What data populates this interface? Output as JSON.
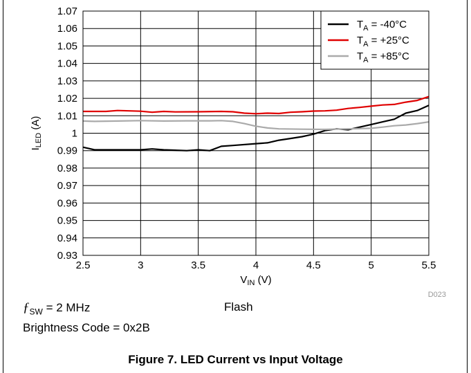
{
  "chart_data": {
    "type": "line",
    "xlabel": {
      "main": "V",
      "sub": "IN",
      "unit": " (V)"
    },
    "ylabel": {
      "main": "I",
      "sub": "LED",
      "unit": " (A)"
    },
    "xlim": [
      2.5,
      5.5
    ],
    "ylim": [
      0.93,
      1.07
    ],
    "x_ticks": [
      "2.5",
      "3",
      "3.5",
      "4",
      "4.5",
      "5",
      "5.5"
    ],
    "y_ticks": [
      "0.93",
      "0.94",
      "0.95",
      "0.96",
      "0.97",
      "0.98",
      "0.99",
      "1",
      "1.01",
      "1.02",
      "1.03",
      "1.04",
      "1.05",
      "1.06",
      "1.07"
    ],
    "grid": true,
    "legend_position": "top-right",
    "figure_id": "D023",
    "series": [
      {
        "legend_main": "T",
        "legend_sub": "A",
        "legend_rest": " = -40°C",
        "color": "#000000",
        "x": [
          2.5,
          2.6,
          2.8,
          3.0,
          3.1,
          3.2,
          3.4,
          3.5,
          3.6,
          3.7,
          3.8,
          4.0,
          4.1,
          4.2,
          4.3,
          4.4,
          4.5,
          4.6,
          4.7,
          4.8,
          4.9,
          5.0,
          5.1,
          5.2,
          5.3,
          5.4,
          5.5
        ],
        "y": [
          0.992,
          0.9905,
          0.9905,
          0.9905,
          0.991,
          0.9905,
          0.99,
          0.9905,
          0.99,
          0.9925,
          0.993,
          0.994,
          0.9945,
          0.996,
          0.997,
          0.998,
          0.9995,
          1.0015,
          1.0025,
          1.002,
          1.0035,
          1.005,
          1.0065,
          1.008,
          1.0115,
          1.013,
          1.016
        ]
      },
      {
        "legend_main": "T",
        "legend_sub": "A",
        "legend_rest": " = +25°C",
        "color": "#e00000",
        "x": [
          2.5,
          2.6,
          2.7,
          2.8,
          2.9,
          3.0,
          3.1,
          3.2,
          3.3,
          3.5,
          3.7,
          3.8,
          3.9,
          4.0,
          4.1,
          4.2,
          4.3,
          4.4,
          4.5,
          4.6,
          4.7,
          4.8,
          4.9,
          5.0,
          5.1,
          5.2,
          5.3,
          5.4,
          5.5
        ],
        "y": [
          1.0125,
          1.0125,
          1.0125,
          1.013,
          1.0128,
          1.0126,
          1.012,
          1.0125,
          1.0122,
          1.0123,
          1.0125,
          1.0123,
          1.0115,
          1.0112,
          1.0115,
          1.0113,
          1.012,
          1.0123,
          1.0127,
          1.0128,
          1.0132,
          1.0142,
          1.0148,
          1.0155,
          1.0162,
          1.0165,
          1.0178,
          1.0188,
          1.021
        ]
      },
      {
        "legend_main": "T",
        "legend_sub": "A",
        "legend_rest": " = +85°C",
        "color": "#aaaaaa",
        "x": [
          2.5,
          2.6,
          2.8,
          3.0,
          3.2,
          3.4,
          3.6,
          3.7,
          3.8,
          3.9,
          4.0,
          4.1,
          4.2,
          4.4,
          4.6,
          4.8,
          5.0,
          5.1,
          5.2,
          5.3,
          5.4,
          5.5
        ],
        "y": [
          1.007,
          1.0068,
          1.007,
          1.0072,
          1.007,
          1.0071,
          1.0071,
          1.0072,
          1.0068,
          1.0055,
          1.004,
          1.003,
          1.0025,
          1.0023,
          1.0022,
          1.0025,
          1.0028,
          1.0035,
          1.0043,
          1.0047,
          1.0055,
          1.0065
        ]
      }
    ]
  },
  "notes": {
    "fsw_symbol": "ƒ",
    "fsw_sub": "SW",
    "fsw_value": " = 2 MHz",
    "mode": "Flash",
    "brightness": "Brightness Code = 0x2B"
  },
  "caption": "Figure 7. LED Current vs Input Voltage"
}
